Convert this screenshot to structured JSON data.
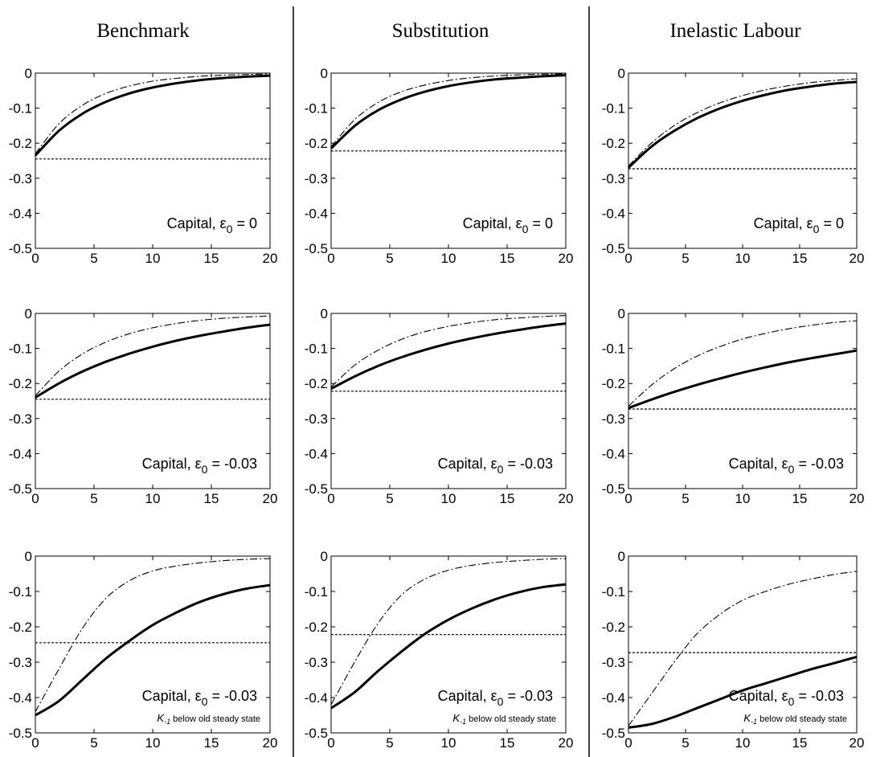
{
  "column_titles": [
    "Benchmark",
    "Substitution",
    "Inelastic Labour"
  ],
  "chart_data": [
    {
      "type": "line",
      "column": 0,
      "row": 0,
      "xlim": [
        0,
        20
      ],
      "ylim": [
        -0.5,
        0
      ],
      "xticks": [
        "0",
        "5",
        "10",
        "15",
        "20"
      ],
      "yticks": [
        "0",
        "-0.1",
        "-0.2",
        "-0.3",
        "-0.4",
        "-0.5"
      ],
      "label_prefix": "Capital,  ",
      "label_epsilon": "ε",
      "label_sub": "0",
      "label_value": " = 0",
      "note": "",
      "series": [
        {
          "style": "thick",
          "x": [
            0,
            2,
            4,
            6,
            8,
            10,
            12,
            14,
            16,
            18,
            20
          ],
          "y": [
            -0.235,
            -0.165,
            -0.116,
            -0.082,
            -0.058,
            -0.041,
            -0.029,
            -0.02,
            -0.014,
            -0.01,
            -0.007
          ]
        },
        {
          "style": "dashdot",
          "x": [
            0,
            2,
            4,
            6,
            8,
            10,
            12,
            14,
            16,
            18,
            20
          ],
          "y": [
            -0.23,
            -0.145,
            -0.092,
            -0.058,
            -0.037,
            -0.023,
            -0.015,
            -0.009,
            -0.006,
            -0.004,
            -0.002
          ]
        },
        {
          "style": "dotted",
          "x": [
            0,
            20
          ],
          "y": [
            -0.245,
            -0.245
          ]
        }
      ]
    },
    {
      "type": "line",
      "column": 1,
      "row": 0,
      "xlim": [
        0,
        20
      ],
      "ylim": [
        -0.5,
        0
      ],
      "xticks": [
        "0",
        "5",
        "10",
        "15",
        "20"
      ],
      "yticks": [
        "0",
        "-0.1",
        "-0.2",
        "-0.3",
        "-0.4",
        "-0.5"
      ],
      "label_prefix": "Capital,  ",
      "label_epsilon": "ε",
      "label_sub": "0",
      "label_value": " = 0",
      "note": "",
      "series": [
        {
          "style": "thick",
          "x": [
            0,
            2,
            4,
            6,
            8,
            10,
            12,
            14,
            16,
            18,
            20
          ],
          "y": [
            -0.215,
            -0.151,
            -0.106,
            -0.075,
            -0.053,
            -0.037,
            -0.026,
            -0.018,
            -0.013,
            -0.009,
            -0.006
          ]
        },
        {
          "style": "dashdot",
          "x": [
            0,
            2,
            4,
            6,
            8,
            10,
            12,
            14,
            16,
            18,
            20
          ],
          "y": [
            -0.21,
            -0.133,
            -0.084,
            -0.053,
            -0.034,
            -0.021,
            -0.013,
            -0.008,
            -0.005,
            -0.003,
            -0.002
          ]
        },
        {
          "style": "dotted",
          "x": [
            0,
            20
          ],
          "y": [
            -0.222,
            -0.222
          ]
        }
      ]
    },
    {
      "type": "line",
      "column": 2,
      "row": 0,
      "xlim": [
        0,
        20
      ],
      "ylim": [
        -0.5,
        0
      ],
      "xticks": [
        "0",
        "5",
        "10",
        "15",
        "20"
      ],
      "yticks": [
        "0",
        "-0.1",
        "-0.2",
        "-0.3",
        "-0.4",
        "-0.5"
      ],
      "label_prefix": "Capital,  ",
      "label_epsilon": "ε",
      "label_sub": "0",
      "label_value": " = 0",
      "note": "",
      "series": [
        {
          "style": "thick",
          "x": [
            0,
            2,
            4,
            6,
            8,
            10,
            12,
            14,
            16,
            18,
            20
          ],
          "y": [
            -0.27,
            -0.21,
            -0.165,
            -0.129,
            -0.101,
            -0.079,
            -0.062,
            -0.048,
            -0.038,
            -0.03,
            -0.025
          ]
        },
        {
          "style": "dashdot",
          "x": [
            0,
            2,
            4,
            6,
            8,
            10,
            12,
            14,
            16,
            18,
            20
          ],
          "y": [
            -0.265,
            -0.2,
            -0.15,
            -0.113,
            -0.085,
            -0.064,
            -0.048,
            -0.036,
            -0.027,
            -0.021,
            -0.016
          ]
        },
        {
          "style": "dotted",
          "x": [
            0,
            20
          ],
          "y": [
            -0.273,
            -0.273
          ]
        }
      ]
    },
    {
      "type": "line",
      "column": 0,
      "row": 1,
      "xlim": [
        0,
        20
      ],
      "ylim": [
        -0.5,
        0
      ],
      "xticks": [
        "0",
        "5",
        "10",
        "15",
        "20"
      ],
      "yticks": [
        "0",
        "-0.1",
        "-0.2",
        "-0.3",
        "-0.4",
        "-0.5"
      ],
      "label_prefix": "Capital, ",
      "label_epsilon": "ε",
      "label_sub": "0",
      "label_value": " = -0.03",
      "note": "",
      "series": [
        {
          "style": "thick",
          "x": [
            0,
            2,
            4,
            6,
            8,
            10,
            12,
            14,
            16,
            18,
            20
          ],
          "y": [
            -0.24,
            -0.2,
            -0.166,
            -0.138,
            -0.115,
            -0.095,
            -0.078,
            -0.064,
            -0.052,
            -0.041,
            -0.032
          ]
        },
        {
          "style": "dashdot",
          "x": [
            0,
            2,
            4,
            6,
            8,
            10,
            12,
            14,
            16,
            18,
            20
          ],
          "y": [
            -0.235,
            -0.165,
            -0.116,
            -0.082,
            -0.058,
            -0.041,
            -0.029,
            -0.02,
            -0.014,
            -0.01,
            -0.007
          ]
        },
        {
          "style": "dotted",
          "x": [
            0,
            20
          ],
          "y": [
            -0.245,
            -0.245
          ]
        }
      ]
    },
    {
      "type": "line",
      "column": 1,
      "row": 1,
      "xlim": [
        0,
        20
      ],
      "ylim": [
        -0.5,
        0
      ],
      "xticks": [
        "0",
        "5",
        "10",
        "15",
        "20"
      ],
      "yticks": [
        "0",
        "-0.1",
        "-0.2",
        "-0.3",
        "-0.4",
        "-0.5"
      ],
      "label_prefix": "Capital, ",
      "label_epsilon": "ε",
      "label_sub": "0",
      "label_value": " = -0.03",
      "note": "",
      "series": [
        {
          "style": "thick",
          "x": [
            0,
            2,
            4,
            6,
            8,
            10,
            12,
            14,
            16,
            18,
            20
          ],
          "y": [
            -0.215,
            -0.18,
            -0.15,
            -0.125,
            -0.104,
            -0.086,
            -0.071,
            -0.058,
            -0.047,
            -0.037,
            -0.029
          ]
        },
        {
          "style": "dashdot",
          "x": [
            0,
            2,
            4,
            6,
            8,
            10,
            12,
            14,
            16,
            18,
            20
          ],
          "y": [
            -0.21,
            -0.148,
            -0.105,
            -0.074,
            -0.052,
            -0.037,
            -0.026,
            -0.018,
            -0.013,
            -0.009,
            -0.006
          ]
        },
        {
          "style": "dotted",
          "x": [
            0,
            20
          ],
          "y": [
            -0.222,
            -0.222
          ]
        }
      ]
    },
    {
      "type": "line",
      "column": 2,
      "row": 1,
      "xlim": [
        0,
        20
      ],
      "ylim": [
        -0.5,
        0
      ],
      "xticks": [
        "0",
        "5",
        "10",
        "15",
        "20"
      ],
      "yticks": [
        "0",
        "-0.1",
        "-0.2",
        "-0.3",
        "-0.4",
        "-0.5"
      ],
      "label_prefix": "Capital, ",
      "label_epsilon": "ε",
      "label_sub": "0",
      "label_value": " = -0.03",
      "note": "",
      "series": [
        {
          "style": "thick",
          "x": [
            0,
            2,
            4,
            6,
            8,
            10,
            12,
            14,
            16,
            18,
            20
          ],
          "y": [
            -0.27,
            -0.246,
            -0.224,
            -0.204,
            -0.186,
            -0.169,
            -0.154,
            -0.14,
            -0.128,
            -0.117,
            -0.106
          ]
        },
        {
          "style": "dashdot",
          "x": [
            0,
            2,
            4,
            6,
            8,
            10,
            12,
            14,
            16,
            18,
            20
          ],
          "y": [
            -0.265,
            -0.205,
            -0.158,
            -0.122,
            -0.095,
            -0.073,
            -0.057,
            -0.044,
            -0.034,
            -0.026,
            -0.021
          ]
        },
        {
          "style": "dotted",
          "x": [
            0,
            20
          ],
          "y": [
            -0.273,
            -0.273
          ]
        }
      ]
    },
    {
      "type": "line",
      "column": 0,
      "row": 2,
      "xlim": [
        0,
        20
      ],
      "ylim": [
        -0.5,
        0
      ],
      "xticks": [
        "0",
        "5",
        "10",
        "15",
        "20"
      ],
      "yticks": [
        "0",
        "-0.1",
        "-0.2",
        "-0.3",
        "-0.4",
        "-0.5"
      ],
      "label_prefix": "Capital, ",
      "label_epsilon": "ε",
      "label_sub": "0",
      "label_value": " = -0.03",
      "note": "K-1 below old steady state",
      "series": [
        {
          "style": "thick",
          "x": [
            0,
            2,
            4,
            6,
            8,
            10,
            12,
            14,
            16,
            18,
            20
          ],
          "y": [
            -0.45,
            -0.41,
            -0.35,
            -0.29,
            -0.24,
            -0.195,
            -0.16,
            -0.13,
            -0.108,
            -0.092,
            -0.082
          ]
        },
        {
          "style": "dashdot",
          "x": [
            0,
            2,
            4,
            6,
            8,
            10,
            12,
            14,
            16,
            18,
            20
          ],
          "y": [
            -0.44,
            -0.32,
            -0.205,
            -0.12,
            -0.07,
            -0.042,
            -0.028,
            -0.019,
            -0.013,
            -0.009,
            -0.007
          ]
        },
        {
          "style": "dotted",
          "x": [
            0,
            20
          ],
          "y": [
            -0.245,
            -0.245
          ]
        }
      ]
    },
    {
      "type": "line",
      "column": 1,
      "row": 2,
      "xlim": [
        0,
        20
      ],
      "ylim": [
        -0.5,
        0
      ],
      "xticks": [
        "0",
        "5",
        "10",
        "15",
        "20"
      ],
      "yticks": [
        "0",
        "-0.1",
        "-0.2",
        "-0.3",
        "-0.4",
        "-0.5"
      ],
      "label_prefix": "Capital, ",
      "label_epsilon": "ε",
      "label_sub": "0",
      "label_value": " = -0.03",
      "note": "K-1 below old steady state",
      "series": [
        {
          "style": "thick",
          "x": [
            0,
            2,
            4,
            6,
            8,
            10,
            12,
            14,
            16,
            18,
            20
          ],
          "y": [
            -0.43,
            -0.385,
            -0.325,
            -0.27,
            -0.22,
            -0.18,
            -0.148,
            -0.122,
            -0.102,
            -0.088,
            -0.08
          ]
        },
        {
          "style": "dashdot",
          "x": [
            0,
            2,
            4,
            6,
            8,
            10,
            12,
            14,
            16,
            18,
            20
          ],
          "y": [
            -0.42,
            -0.3,
            -0.19,
            -0.11,
            -0.065,
            -0.04,
            -0.026,
            -0.018,
            -0.013,
            -0.009,
            -0.007
          ]
        },
        {
          "style": "dotted",
          "x": [
            0,
            20
          ],
          "y": [
            -0.222,
            -0.222
          ]
        }
      ]
    },
    {
      "type": "line",
      "column": 2,
      "row": 2,
      "xlim": [
        0,
        20
      ],
      "ylim": [
        -0.5,
        0
      ],
      "xticks": [
        "0",
        "5",
        "10",
        "15",
        "20"
      ],
      "yticks": [
        "0",
        "-0.1",
        "-0.2",
        "-0.3",
        "-0.4",
        "-0.5"
      ],
      "label_prefix": "Capital, ",
      "label_epsilon": "ε",
      "label_sub": "0",
      "label_value": " = -0.03",
      "note": "K-1 below old steady state",
      "series": [
        {
          "style": "thick",
          "x": [
            0,
            2,
            4,
            6,
            8,
            10,
            12,
            14,
            16,
            18,
            20
          ],
          "y": [
            -0.485,
            -0.475,
            -0.455,
            -0.43,
            -0.405,
            -0.38,
            -0.36,
            -0.34,
            -0.32,
            -0.303,
            -0.285
          ]
        },
        {
          "style": "dashdot",
          "x": [
            0,
            2,
            4,
            6,
            8,
            10,
            12,
            14,
            16,
            18,
            20
          ],
          "y": [
            -0.48,
            -0.39,
            -0.3,
            -0.22,
            -0.165,
            -0.125,
            -0.1,
            -0.08,
            -0.065,
            -0.052,
            -0.043
          ]
        },
        {
          "style": "dotted",
          "x": [
            0,
            20
          ],
          "y": [
            -0.273,
            -0.273
          ]
        }
      ]
    }
  ]
}
